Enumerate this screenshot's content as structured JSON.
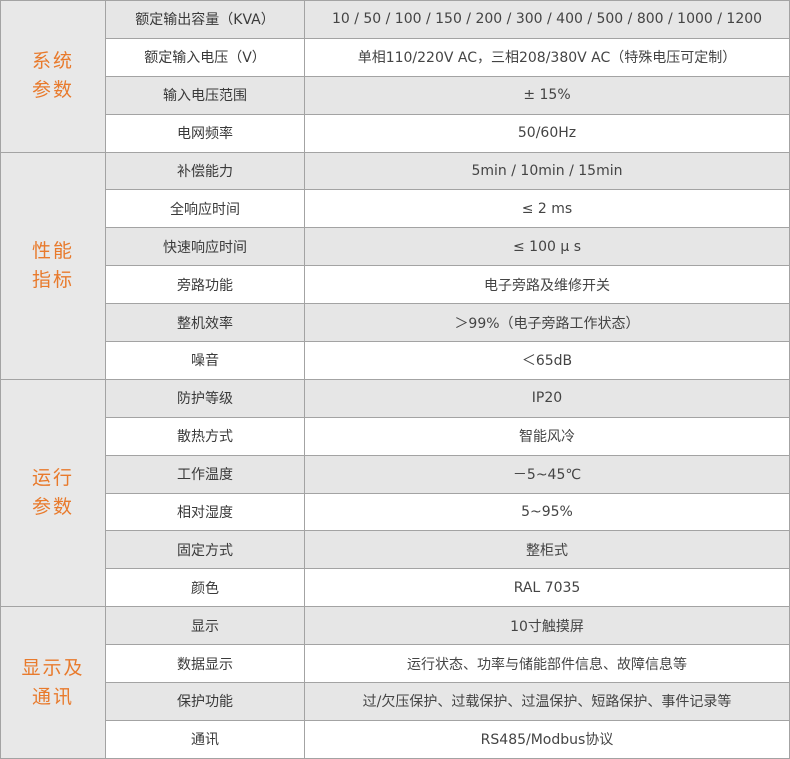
{
  "colors": {
    "accent": "#e87a2c",
    "row_shaded": "#e6e6e6",
    "border": "#a3a3a3"
  },
  "groups": [
    {
      "title_lines": [
        "系统",
        "参数"
      ],
      "rows": [
        {
          "label": "额定输出容量（KVA）",
          "value": "10 / 50 / 100 / 150 / 200 / 300 / 400 / 500 / 800 / 1000 / 1200"
        },
        {
          "label": "额定输入电压（V）",
          "value": "单相110/220V AC，三相208/380V AC（特殊电压可定制）"
        },
        {
          "label": "输入电压范围",
          "value": "± 15%"
        },
        {
          "label": "电网频率",
          "value": "50/60Hz"
        }
      ]
    },
    {
      "title_lines": [
        "性能",
        "指标"
      ],
      "rows": [
        {
          "label": "补偿能力",
          "value": "5min / 10min / 15min"
        },
        {
          "label": "全响应时间",
          "value": "≤ 2 ms"
        },
        {
          "label": "快速响应时间",
          "value": "≤ 100 μ s"
        },
        {
          "label": "旁路功能",
          "value": "电子旁路及维修开关"
        },
        {
          "label": "整机效率",
          "value": "＞99%（电子旁路工作状态）"
        },
        {
          "label": "噪音",
          "value": "＜65dB"
        }
      ]
    },
    {
      "title_lines": [
        "运行",
        "参数"
      ],
      "rows": [
        {
          "label": "防护等级",
          "value": "IP20"
        },
        {
          "label": "散热方式",
          "value": "智能风冷"
        },
        {
          "label": "工作温度",
          "value": "－5~45℃"
        },
        {
          "label": "相对湿度",
          "value": "5~95%"
        },
        {
          "label": "固定方式",
          "value": "整柜式"
        },
        {
          "label": "颜色",
          "value": "RAL 7035"
        }
      ]
    },
    {
      "title_lines": [
        "显示及",
        "通讯"
      ],
      "rows": [
        {
          "label": "显示",
          "value": "10寸触摸屏"
        },
        {
          "label": "数据显示",
          "value": "运行状态、功率与储能部件信息、故障信息等"
        },
        {
          "label": "保护功能",
          "value": "过/欠压保护、过载保护、过温保护、短路保护、事件记录等"
        },
        {
          "label": "通讯",
          "value": "RS485/Modbus协议"
        }
      ]
    }
  ]
}
